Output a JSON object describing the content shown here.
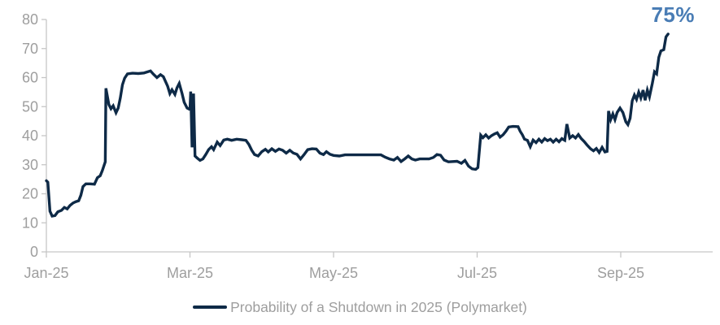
{
  "chart_data": {
    "type": "line",
    "title": "",
    "legend": {
      "label": "Probability of a Shutdown in 2025 (Polymarket)",
      "position": "bottom"
    },
    "annotation": {
      "text": "75%",
      "value": 75,
      "color": "#4a7db5"
    },
    "colors": {
      "line": "#0e2a47",
      "axis": "#c6c6c6",
      "tick_label": "#9e9e9e"
    },
    "grid": false,
    "y_axis": {
      "min": 0,
      "max": 80,
      "ticks": [
        0,
        10,
        20,
        30,
        40,
        50,
        60,
        70,
        80
      ]
    },
    "x_axis": {
      "unit": "months-since-Jan-2025",
      "ticks": [
        {
          "label": "Jan-25",
          "m": 0
        },
        {
          "label": "Mar-25",
          "m": 2
        },
        {
          "label": "May-25",
          "m": 4
        },
        {
          "label": "Jul-25",
          "m": 6
        },
        {
          "label": "Sep-25",
          "m": 8
        }
      ]
    },
    "series": [
      {
        "name": "Probability of a Shutdown in 2025 (Polymarket)",
        "unit": "%",
        "points": [
          [
            0.0,
            24.5
          ],
          [
            0.02,
            24.0
          ],
          [
            0.05,
            14.0
          ],
          [
            0.08,
            12.3
          ],
          [
            0.12,
            12.5
          ],
          [
            0.16,
            13.8
          ],
          [
            0.21,
            14.3
          ],
          [
            0.25,
            15.3
          ],
          [
            0.29,
            14.8
          ],
          [
            0.33,
            16.0
          ],
          [
            0.37,
            16.8
          ],
          [
            0.41,
            17.3
          ],
          [
            0.45,
            17.6
          ],
          [
            0.48,
            19.5
          ],
          [
            0.51,
            22.5
          ],
          [
            0.55,
            23.4
          ],
          [
            0.61,
            23.4
          ],
          [
            0.67,
            23.3
          ],
          [
            0.71,
            25.5
          ],
          [
            0.75,
            26.2
          ],
          [
            0.78,
            28.0
          ],
          [
            0.8,
            29.5
          ],
          [
            0.82,
            31.0
          ],
          [
            0.83,
            56.3
          ],
          [
            0.85,
            53.5
          ],
          [
            0.87,
            50.7
          ],
          [
            0.9,
            49.3
          ],
          [
            0.93,
            50.3
          ],
          [
            0.97,
            47.9
          ],
          [
            1.0,
            49.5
          ],
          [
            1.03,
            53.0
          ],
          [
            1.06,
            57.5
          ],
          [
            1.09,
            59.8
          ],
          [
            1.13,
            61.3
          ],
          [
            1.2,
            61.5
          ],
          [
            1.28,
            61.4
          ],
          [
            1.36,
            61.6
          ],
          [
            1.45,
            62.3
          ],
          [
            1.49,
            61.2
          ],
          [
            1.54,
            60.0
          ],
          [
            1.59,
            61.0
          ],
          [
            1.63,
            60.3
          ],
          [
            1.69,
            57.0
          ],
          [
            1.72,
            54.5
          ],
          [
            1.75,
            55.8
          ],
          [
            1.79,
            54.2
          ],
          [
            1.82,
            56.5
          ],
          [
            1.85,
            58.0
          ],
          [
            1.89,
            54.5
          ],
          [
            1.92,
            51.5
          ],
          [
            1.96,
            49.5
          ],
          [
            2.0,
            49.0
          ],
          [
            2.01,
            55.2
          ],
          [
            2.03,
            36.0
          ],
          [
            2.05,
            54.5
          ],
          [
            2.07,
            33.0
          ],
          [
            2.1,
            32.3
          ],
          [
            2.14,
            31.5
          ],
          [
            2.18,
            32.0
          ],
          [
            2.22,
            33.5
          ],
          [
            2.26,
            35.2
          ],
          [
            2.3,
            36.2
          ],
          [
            2.33,
            35.2
          ],
          [
            2.38,
            37.8
          ],
          [
            2.42,
            36.6
          ],
          [
            2.47,
            38.5
          ],
          [
            2.52,
            38.8
          ],
          [
            2.58,
            38.4
          ],
          [
            2.65,
            38.8
          ],
          [
            2.72,
            38.6
          ],
          [
            2.78,
            38.4
          ],
          [
            2.82,
            37.0
          ],
          [
            2.86,
            35.0
          ],
          [
            2.9,
            33.5
          ],
          [
            2.95,
            33.0
          ],
          [
            3.0,
            34.5
          ],
          [
            3.05,
            35.3
          ],
          [
            3.09,
            34.4
          ],
          [
            3.14,
            35.5
          ],
          [
            3.19,
            34.6
          ],
          [
            3.24,
            35.4
          ],
          [
            3.29,
            35.0
          ],
          [
            3.34,
            34.0
          ],
          [
            3.39,
            35.0
          ],
          [
            3.44,
            34.0
          ],
          [
            3.49,
            33.6
          ],
          [
            3.54,
            32.0
          ],
          [
            3.59,
            33.5
          ],
          [
            3.64,
            35.2
          ],
          [
            3.7,
            35.5
          ],
          [
            3.76,
            35.4
          ],
          [
            3.81,
            34.0
          ],
          [
            3.86,
            33.5
          ],
          [
            3.9,
            34.5
          ],
          [
            3.95,
            33.6
          ],
          [
            4.0,
            33.2
          ],
          [
            4.08,
            33.0
          ],
          [
            4.16,
            33.4
          ],
          [
            4.4,
            33.4
          ],
          [
            4.66,
            33.4
          ],
          [
            4.72,
            32.6
          ],
          [
            4.78,
            32.0
          ],
          [
            4.84,
            31.6
          ],
          [
            4.89,
            32.5
          ],
          [
            4.94,
            31.1
          ],
          [
            4.99,
            32.0
          ],
          [
            5.04,
            33.0
          ],
          [
            5.09,
            32.0
          ],
          [
            5.14,
            31.6
          ],
          [
            5.2,
            32.0
          ],
          [
            5.33,
            32.0
          ],
          [
            5.39,
            32.5
          ],
          [
            5.44,
            33.5
          ],
          [
            5.49,
            33.3
          ],
          [
            5.54,
            31.6
          ],
          [
            5.6,
            31.0
          ],
          [
            5.72,
            31.2
          ],
          [
            5.78,
            30.5
          ],
          [
            5.83,
            31.5
          ],
          [
            5.88,
            29.5
          ],
          [
            5.93,
            28.6
          ],
          [
            5.98,
            28.4
          ],
          [
            6.01,
            29.0
          ],
          [
            6.05,
            40.2
          ],
          [
            6.08,
            39.3
          ],
          [
            6.12,
            40.3
          ],
          [
            6.16,
            39.2
          ],
          [
            6.2,
            40.0
          ],
          [
            6.24,
            40.6
          ],
          [
            6.28,
            41.0
          ],
          [
            6.32,
            39.5
          ],
          [
            6.36,
            40.3
          ],
          [
            6.4,
            41.5
          ],
          [
            6.44,
            43.0
          ],
          [
            6.5,
            43.2
          ],
          [
            6.57,
            43.1
          ],
          [
            6.6,
            41.5
          ],
          [
            6.63,
            40.3
          ],
          [
            6.66,
            38.8
          ],
          [
            6.7,
            38.4
          ],
          [
            6.74,
            36.2
          ],
          [
            6.78,
            38.5
          ],
          [
            6.82,
            37.6
          ],
          [
            6.86,
            38.8
          ],
          [
            6.9,
            37.8
          ],
          [
            6.94,
            39.0
          ],
          [
            6.98,
            38.3
          ],
          [
            7.02,
            38.8
          ],
          [
            7.06,
            37.8
          ],
          [
            7.1,
            38.8
          ],
          [
            7.14,
            37.9
          ],
          [
            7.18,
            39.0
          ],
          [
            7.22,
            38.4
          ],
          [
            7.25,
            44.0
          ],
          [
            7.29,
            39.2
          ],
          [
            7.33,
            40.0
          ],
          [
            7.37,
            39.2
          ],
          [
            7.41,
            40.4
          ],
          [
            7.45,
            39.0
          ],
          [
            7.49,
            38.0
          ],
          [
            7.53,
            36.8
          ],
          [
            7.58,
            35.5
          ],
          [
            7.62,
            34.8
          ],
          [
            7.66,
            35.6
          ],
          [
            7.7,
            34.2
          ],
          [
            7.74,
            36.0
          ],
          [
            7.78,
            34.4
          ],
          [
            7.81,
            34.6
          ],
          [
            7.83,
            48.5
          ],
          [
            7.86,
            45.5
          ],
          [
            7.89,
            47.5
          ],
          [
            7.92,
            45.5
          ],
          [
            7.95,
            48.0
          ],
          [
            7.99,
            49.5
          ],
          [
            8.03,
            48.0
          ],
          [
            8.07,
            44.8
          ],
          [
            8.1,
            43.8
          ],
          [
            8.13,
            46.0
          ],
          [
            8.16,
            52.0
          ],
          [
            8.19,
            54.0
          ],
          [
            8.22,
            52.5
          ],
          [
            8.25,
            55.0
          ],
          [
            8.28,
            53.0
          ],
          [
            8.31,
            55.7
          ],
          [
            8.34,
            52.2
          ],
          [
            8.37,
            55.7
          ],
          [
            8.4,
            53.4
          ],
          [
            8.44,
            58.0
          ],
          [
            8.47,
            62.0
          ],
          [
            8.5,
            61.3
          ],
          [
            8.53,
            67.0
          ],
          [
            8.56,
            69.2
          ],
          [
            8.6,
            69.6
          ],
          [
            8.63,
            74.0
          ],
          [
            8.66,
            75.0
          ]
        ]
      }
    ]
  }
}
